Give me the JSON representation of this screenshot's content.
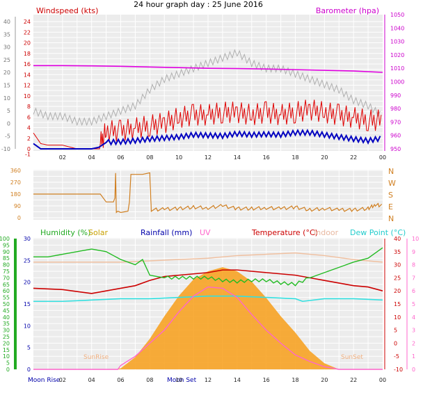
{
  "header": {
    "title": "24 hour graph day : 25 June 2016"
  },
  "colors": {
    "wind_speed": "#e00000",
    "wind_avg": "#0000c0",
    "barometer": "#e000e0",
    "gust_grey": "#b0b0b0",
    "wind_dir": "#d07f20",
    "humidity": "#22bb22",
    "solar": "#c8a000",
    "solar_fill": "#f7a325",
    "rainfall": "#0000aa",
    "uv": "#ff66cc",
    "temperature": "#cc0000",
    "indoor": "#f0c0a0",
    "dew_point": "#33e0e0",
    "bg": "#ececec",
    "grid": "#ffffff"
  },
  "x_ticks": [
    "02",
    "04",
    "06",
    "08",
    "10",
    "12",
    "14",
    "16",
    "18",
    "20",
    "22",
    "00"
  ],
  "chart_data": [
    {
      "type": "line",
      "title": "24 hour graph day : 25 June 2016",
      "x_range_hours": [
        0,
        24
      ],
      "grid": true,
      "left_axis": {
        "label": "Windspeed (kts)",
        "ticks": [
          "-1",
          "0",
          "2",
          "4",
          "6",
          "8",
          "10",
          "12",
          "14",
          "16",
          "18",
          "20",
          "22",
          "24"
        ]
      },
      "far_left_ticks": [
        "40",
        "35",
        "30",
        "25",
        "20",
        "15",
        "10",
        "5",
        "0",
        "-5",
        "-10"
      ],
      "right_axis": {
        "label": "Barometer (hpa)",
        "ticks": [
          "1050",
          "1040",
          "1030",
          "1020",
          "1010",
          "1000",
          "990",
          "980",
          "970",
          "960",
          "950"
        ],
        "range": [
          950,
          1050
        ]
      },
      "series": [
        {
          "name": "Barometer (hpa)",
          "axis": "right",
          "x": [
            0,
            2,
            4,
            6,
            8,
            10,
            12,
            14,
            16,
            18,
            20,
            22,
            24
          ],
          "y": [
            1012,
            1012,
            1011.8,
            1011.5,
            1011,
            1010.5,
            1010,
            1009.8,
            1009.5,
            1009,
            1008.5,
            1008,
            1007
          ]
        },
        {
          "x": [
            0,
            1,
            2,
            3,
            4,
            5,
            6,
            7,
            8,
            9,
            10,
            11,
            12,
            13,
            14,
            15,
            16,
            17,
            18,
            19,
            20,
            21,
            22,
            23,
            24
          ],
          "y": [
            7,
            6,
            6,
            5,
            5,
            6,
            7,
            8,
            11,
            13,
            14,
            15,
            16,
            17,
            18,
            16,
            15,
            15,
            14,
            13,
            12,
            11,
            9,
            8,
            6
          ]
        },
        {
          "x": [
            0,
            0.5,
            1,
            2,
            3,
            4,
            4.5,
            5,
            6,
            7,
            8,
            9,
            10,
            11,
            12,
            13,
            14,
            15,
            16,
            17,
            18,
            19,
            20,
            21,
            22,
            23,
            24
          ],
          "y": [
            3,
            1,
            0.7,
            0.7,
            0,
            0,
            0,
            3,
            3,
            3.5,
            4,
            4.5,
            5.5,
            6,
            6,
            6.5,
            6.5,
            6,
            6.5,
            6,
            6.5,
            7,
            6.5,
            6,
            5.5,
            5,
            5
          ]
        },
        {
          "x": [
            0,
            0.5,
            1,
            2,
            3,
            4,
            4.5,
            5,
            6,
            7,
            8,
            9,
            10,
            11,
            12,
            13,
            14,
            15,
            16,
            17,
            18,
            19,
            20,
            21,
            22,
            23,
            24
          ],
          "y": [
            1,
            0,
            0,
            0,
            0,
            0,
            0.3,
            1.2,
            1.3,
            1.5,
            1.8,
            2,
            2.2,
            2.6,
            2.5,
            2.4,
            2.8,
            2.6,
            2.7,
            2.6,
            3,
            3,
            2.6,
            2.2,
            1.8,
            1.5,
            2
          ]
        }
      ]
    },
    {
      "type": "line",
      "y_ticks": [
        "360",
        "270",
        "180",
        "90",
        "0"
      ],
      "y_range": [
        0,
        360
      ],
      "right_labels": [
        "N",
        "W",
        "S",
        "E",
        "N"
      ],
      "series": [
        {
          "x": [
            0,
            4,
            4.6,
            5,
            5.5,
            5.6,
            5.65,
            5.7,
            5.8,
            6,
            6.5,
            6.6,
            6.7,
            7.0,
            7.5,
            8.0,
            8.1,
            9,
            10,
            11,
            12,
            13,
            14,
            15,
            16,
            17,
            18,
            19,
            20,
            21,
            22,
            23,
            23.5,
            24
          ],
          "y": [
            180,
            180,
            180,
            120,
            120,
            150,
            340,
            40,
            50,
            40,
            50,
            120,
            330,
            330,
            330,
            330,
            60,
            65,
            70,
            80,
            75,
            90,
            70,
            70,
            75,
            70,
            80,
            60,
            70,
            60,
            60,
            70,
            100,
            90
          ]
        }
      ]
    },
    {
      "type": "line",
      "legend": [
        "Humidity (%)",
        "Solar",
        "Rainfall (mm)",
        "UV",
        "Temperature (°C)",
        "Indoor",
        "Dew Point (°C)"
      ],
      "left_ticks_humidity": [
        "100",
        "95",
        "90",
        "85",
        "80",
        "75",
        "70",
        "65",
        "60",
        "55",
        "50",
        "45",
        "40",
        "35",
        "30",
        "25",
        "20",
        "15",
        "10",
        "5",
        "0"
      ],
      "left_ticks_rain": [
        "30",
        "25",
        "20",
        "15",
        "10",
        "5",
        "0"
      ],
      "right_ticks_temp": [
        "40",
        "35",
        "30",
        "25",
        "20",
        "15",
        "10",
        "5",
        "0",
        "-5",
        "-10"
      ],
      "right_ticks_uv": [
        "10",
        "9",
        "8",
        "7",
        "6",
        "5",
        "4",
        "3",
        "2",
        "1",
        "0"
      ],
      "annotations": [
        "Moon Rise",
        "SunRise",
        "Moon Set",
        "SunSet"
      ],
      "series": [
        {
          "name": "Humidity (%)",
          "x": [
            0,
            1,
            2,
            3,
            4,
            5,
            6,
            6.5,
            7,
            7.5,
            8,
            9,
            10,
            11,
            12,
            13,
            14,
            15,
            16,
            17,
            18,
            19,
            20,
            21,
            22,
            23,
            24
          ],
          "y": [
            86,
            86,
            88,
            90,
            92,
            90,
            84,
            82,
            80,
            84,
            72,
            70,
            70,
            70,
            70,
            68,
            67,
            68,
            68,
            66,
            65,
            70,
            74,
            78,
            82,
            85,
            93
          ]
        },
        {
          "name": "Solar",
          "x": [
            0,
            5.7,
            6,
            7,
            8,
            9,
            10,
            11,
            12,
            13,
            14,
            15,
            16,
            17,
            18,
            19,
            20,
            21,
            24
          ],
          "y": [
            0,
            0,
            5,
            60,
            150,
            260,
            360,
            440,
            480,
            500,
            480,
            430,
            350,
            260,
            180,
            90,
            30,
            0,
            0
          ]
        },
        {
          "name": "UV",
          "x": [
            0,
            5.8,
            6,
            7,
            8,
            9,
            10,
            11,
            12,
            13,
            14,
            15,
            16,
            17,
            18,
            19,
            20,
            21,
            24
          ],
          "y": [
            0,
            0,
            0.3,
            1,
            2,
            3,
            4.4,
            5.6,
            6.3,
            6.2,
            5.5,
            4.2,
            3,
            2,
            1.1,
            0.6,
            0.2,
            0,
            0
          ]
        },
        {
          "name": "Temperature (°C)",
          "x": [
            0,
            2,
            4,
            6,
            7,
            8,
            9,
            10,
            11,
            12,
            13,
            14,
            15,
            16,
            17,
            18,
            19,
            20,
            21,
            22,
            23,
            24
          ],
          "y": [
            21,
            20.5,
            19,
            21,
            22,
            24,
            25.5,
            26,
            26.5,
            27,
            28,
            28,
            27.5,
            27,
            26.5,
            26,
            25,
            24,
            23,
            22,
            21.5,
            20
          ]
        },
        {
          "name": "Indoor",
          "x": [
            0,
            2,
            4,
            6,
            8,
            10,
            12,
            14,
            16,
            18,
            20,
            22,
            24
          ],
          "y": [
            31,
            31,
            31,
            31,
            31.5,
            32,
            32.5,
            33.5,
            34,
            34.5,
            33.5,
            32,
            31
          ]
        },
        {
          "name": "Dew Point (°C)",
          "x": [
            0,
            2,
            4,
            6,
            8,
            10,
            12,
            14,
            16,
            18,
            18.5,
            20,
            22,
            24
          ],
          "y": [
            16,
            16,
            16.5,
            17,
            17,
            17.5,
            18,
            18,
            17.5,
            17,
            16,
            17,
            17,
            16.5
          ]
        }
      ]
    }
  ]
}
